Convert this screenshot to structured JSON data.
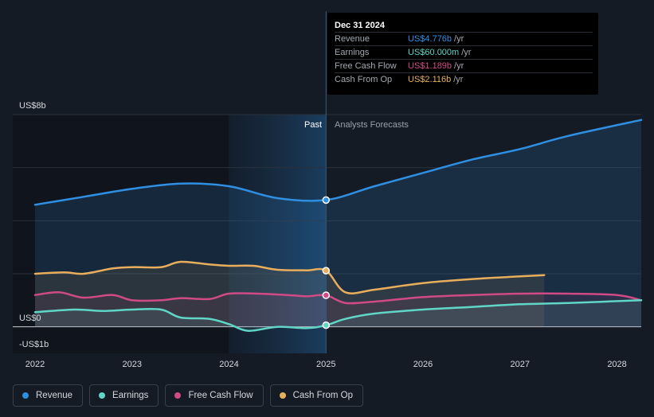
{
  "chart_data": {
    "type": "line",
    "title": "",
    "y_unit_labels": {
      "top": "US$8b",
      "zero": "US$0",
      "bottom": "-US$1b"
    },
    "ylim": [
      -1,
      8
    ],
    "xlim": [
      2021.77,
      2028.25
    ],
    "x_ticks": [
      "2022",
      "2023",
      "2024",
      "2025",
      "2026",
      "2027",
      "2028"
    ],
    "x_tick_values": [
      2022,
      2023,
      2024,
      2025,
      2026,
      2027,
      2028
    ],
    "divider_x": 2025,
    "highlight_start": 2024,
    "past_label": "Past",
    "forecast_label": "Analysts Forecasts",
    "series": [
      {
        "name": "Revenue",
        "color": "#2f8fe3",
        "fill": true,
        "forecast": true,
        "points": [
          [
            2022,
            4.6
          ],
          [
            2022.5,
            4.9
          ],
          [
            2023,
            5.2
          ],
          [
            2023.5,
            5.4
          ],
          [
            2024,
            5.3
          ],
          [
            2024.5,
            4.85
          ],
          [
            2025,
            4.78
          ],
          [
            2025.5,
            5.3
          ],
          [
            2026,
            5.8
          ],
          [
            2026.5,
            6.3
          ],
          [
            2027,
            6.7
          ],
          [
            2027.5,
            7.2
          ],
          [
            2028.25,
            7.8
          ]
        ]
      },
      {
        "name": "Cash From Op",
        "color": "#e8ae5c",
        "fill": true,
        "forecast": true,
        "points": [
          [
            2022,
            2.0
          ],
          [
            2022.3,
            2.05
          ],
          [
            2022.5,
            2.0
          ],
          [
            2022.8,
            2.2
          ],
          [
            2023,
            2.25
          ],
          [
            2023.3,
            2.25
          ],
          [
            2023.5,
            2.45
          ],
          [
            2023.8,
            2.35
          ],
          [
            2024,
            2.3
          ],
          [
            2024.25,
            2.3
          ],
          [
            2024.5,
            2.15
          ],
          [
            2024.8,
            2.13
          ],
          [
            2025,
            2.116
          ],
          [
            2025.2,
            1.3
          ],
          [
            2025.5,
            1.4
          ],
          [
            2026,
            1.65
          ],
          [
            2026.5,
            1.8
          ],
          [
            2027,
            1.9
          ],
          [
            2027.25,
            1.95
          ]
        ]
      },
      {
        "name": "Free Cash Flow",
        "color": "#d04a86",
        "fill": true,
        "forecast": true,
        "points": [
          [
            2022,
            1.2
          ],
          [
            2022.25,
            1.3
          ],
          [
            2022.5,
            1.1
          ],
          [
            2022.8,
            1.2
          ],
          [
            2023,
            1.0
          ],
          [
            2023.3,
            1.0
          ],
          [
            2023.5,
            1.08
          ],
          [
            2023.8,
            1.05
          ],
          [
            2024,
            1.25
          ],
          [
            2024.3,
            1.25
          ],
          [
            2024.6,
            1.2
          ],
          [
            2024.8,
            1.15
          ],
          [
            2025,
            1.189
          ],
          [
            2025.2,
            0.9
          ],
          [
            2025.5,
            0.95
          ],
          [
            2026,
            1.12
          ],
          [
            2026.5,
            1.2
          ],
          [
            2027,
            1.25
          ],
          [
            2027.5,
            1.25
          ],
          [
            2028,
            1.2
          ],
          [
            2028.25,
            1.0
          ]
        ]
      },
      {
        "name": "Earnings",
        "color": "#5fd6c6",
        "fill": true,
        "forecast": true,
        "points": [
          [
            2022,
            0.55
          ],
          [
            2022.4,
            0.65
          ],
          [
            2022.7,
            0.6
          ],
          [
            2023,
            0.65
          ],
          [
            2023.3,
            0.65
          ],
          [
            2023.5,
            0.35
          ],
          [
            2023.8,
            0.3
          ],
          [
            2024,
            0.1
          ],
          [
            2024.2,
            -0.15
          ],
          [
            2024.5,
            0.0
          ],
          [
            2024.8,
            -0.05
          ],
          [
            2025,
            0.06
          ],
          [
            2025.2,
            0.3
          ],
          [
            2025.5,
            0.5
          ],
          [
            2026,
            0.65
          ],
          [
            2026.5,
            0.75
          ],
          [
            2027,
            0.85
          ],
          [
            2027.5,
            0.9
          ],
          [
            2028.25,
            1.0
          ]
        ]
      }
    ]
  },
  "tooltip": {
    "date": "Dec 31 2024",
    "rows": [
      {
        "label": "Revenue",
        "value": "US$4.776b",
        "unit": "/yr",
        "color": "#2f8fe3"
      },
      {
        "label": "Earnings",
        "value": "US$60.000m",
        "unit": "/yr",
        "color": "#5fd6c6"
      },
      {
        "label": "Free Cash Flow",
        "value": "US$1.189b",
        "unit": "/yr",
        "color": "#d04a86"
      },
      {
        "label": "Cash From Op",
        "value": "US$2.116b",
        "unit": "/yr",
        "color": "#e8ae5c"
      }
    ]
  },
  "legend": [
    {
      "label": "Revenue",
      "color": "#2f8fe3"
    },
    {
      "label": "Earnings",
      "color": "#5fd6c6"
    },
    {
      "label": "Free Cash Flow",
      "color": "#d04a86"
    },
    {
      "label": "Cash From Op",
      "color": "#e8ae5c"
    }
  ]
}
